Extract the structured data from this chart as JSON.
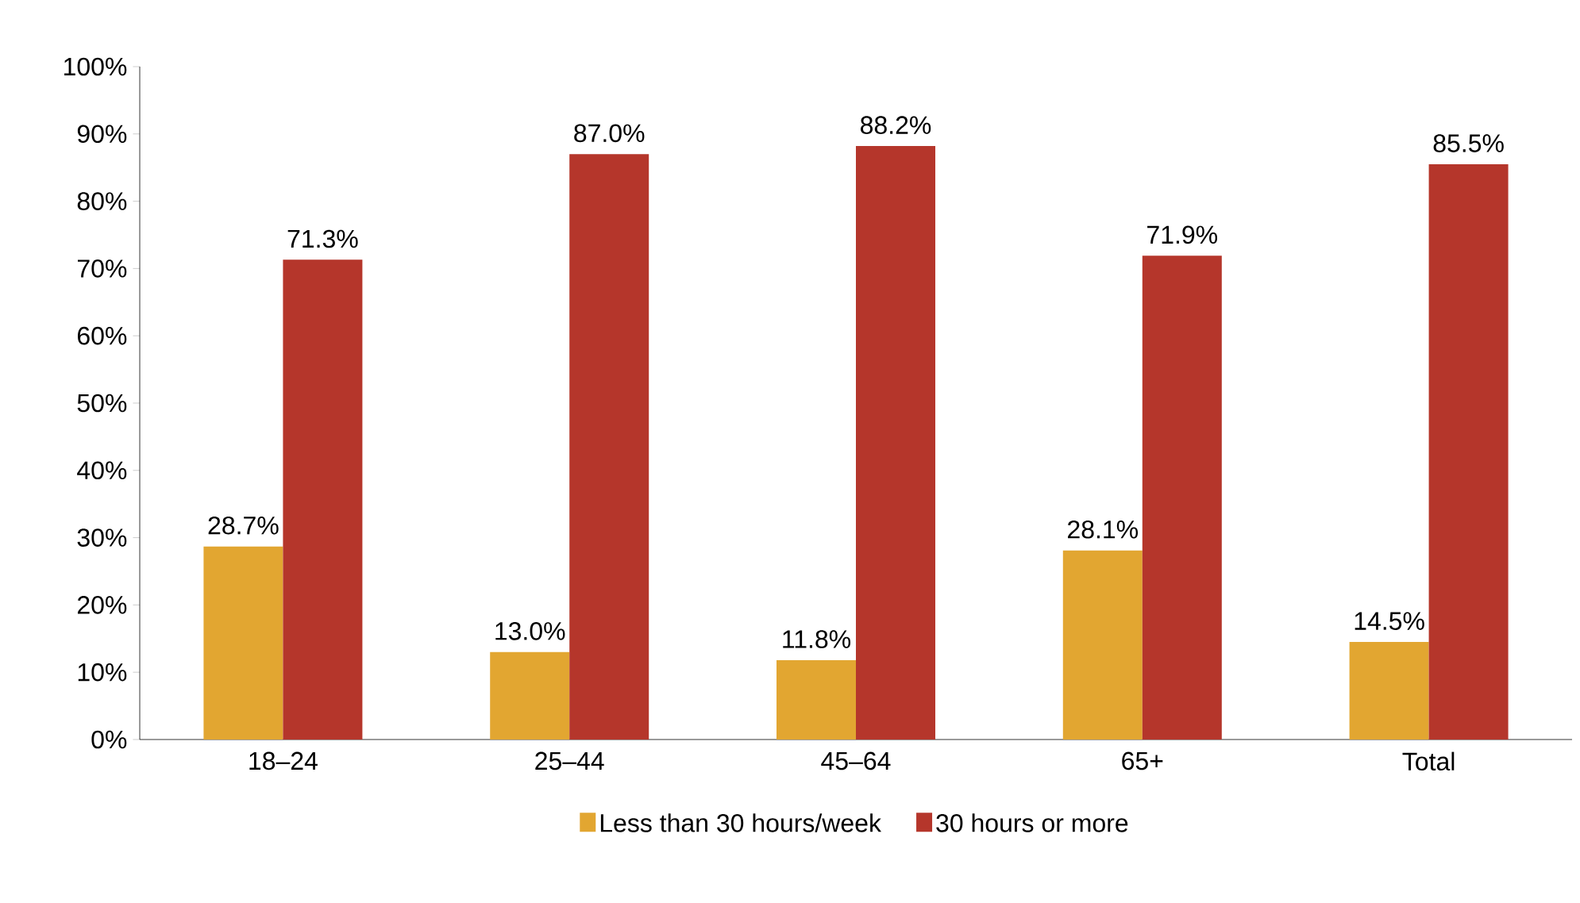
{
  "chart_data": {
    "type": "bar",
    "categories": [
      "18–24",
      "25–44",
      "45–64",
      "65+",
      "Total"
    ],
    "series": [
      {
        "name": "Less than 30 hours/week",
        "color": "#e2a631",
        "values": [
          28.7,
          13.0,
          11.8,
          28.1,
          14.5
        ],
        "value_labels": [
          "28.7%",
          "13.0%",
          "11.8%",
          "28.1%",
          "14.5%"
        ]
      },
      {
        "name": "30 hours or more",
        "color": "#b5362b",
        "values": [
          71.3,
          87.0,
          88.2,
          71.9,
          85.5
        ],
        "value_labels": [
          "71.3%",
          "87.0%",
          "88.2%",
          "71.9%",
          "85.5%"
        ]
      }
    ],
    "ylim": [
      0,
      100
    ],
    "yticks": [
      {
        "value": 0,
        "label": "0%"
      },
      {
        "value": 10,
        "label": "10%"
      },
      {
        "value": 20,
        "label": "20%"
      },
      {
        "value": 30,
        "label": "30%"
      },
      {
        "value": 40,
        "label": "40%"
      },
      {
        "value": 50,
        "label": "50%"
      },
      {
        "value": 60,
        "label": "60%"
      },
      {
        "value": 70,
        "label": "70%"
      },
      {
        "value": 80,
        "label": "80%"
      },
      {
        "value": 90,
        "label": "90%"
      },
      {
        "value": 100,
        "label": "100%"
      }
    ],
    "legend": "bottom",
    "grid": false
  }
}
